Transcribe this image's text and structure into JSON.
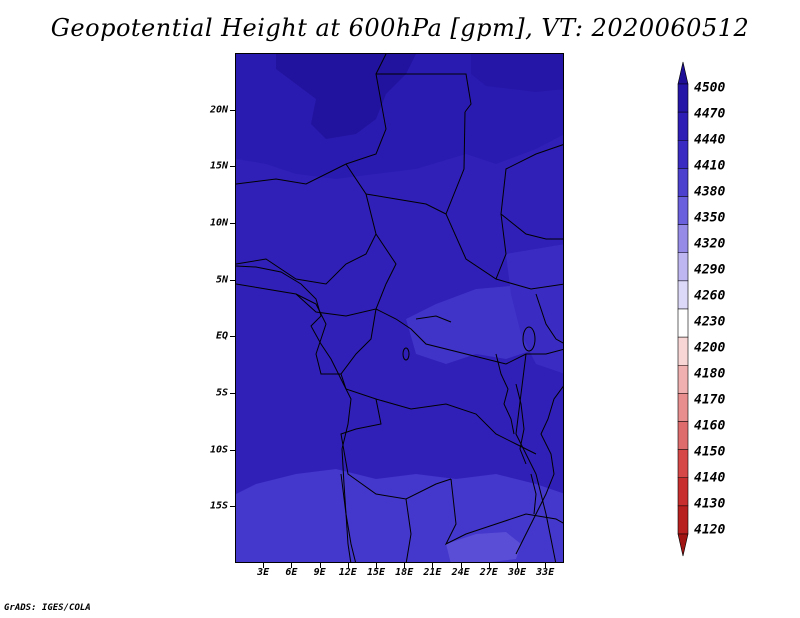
{
  "title": "Geopotential Height at 600hPa [gpm], VT: 2020060512",
  "credit": "GrADS: IGES/COLA",
  "map": {
    "lon_range": [
      0,
      35
    ],
    "lat_range": [
      -20,
      25
    ],
    "lat_ticks": [
      {
        "value": 20,
        "label": "20N"
      },
      {
        "value": 15,
        "label": "15N"
      },
      {
        "value": 10,
        "label": "10N"
      },
      {
        "value": 5,
        "label": "5N"
      },
      {
        "value": 0,
        "label": "EQ"
      },
      {
        "value": -5,
        "label": "5S"
      },
      {
        "value": -10,
        "label": "10S"
      },
      {
        "value": -15,
        "label": "15S"
      }
    ],
    "lon_ticks": [
      {
        "value": 3,
        "label": "3E"
      },
      {
        "value": 6,
        "label": "6E"
      },
      {
        "value": 9,
        "label": "9E"
      },
      {
        "value": 12,
        "label": "12E"
      },
      {
        "value": 15,
        "label": "15E"
      },
      {
        "value": 18,
        "label": "18E"
      },
      {
        "value": 21,
        "label": "21E"
      },
      {
        "value": 24,
        "label": "24E"
      },
      {
        "value": 27,
        "label": "27E"
      },
      {
        "value": 30,
        "label": "30E"
      },
      {
        "value": 33,
        "label": "33E"
      }
    ],
    "field_colors": {
      "level_4470": "#2a1bb0",
      "level_4440": "#3020b8",
      "level_4410": "#3b2ec4",
      "level_4380": "#4a3fcf",
      "level_4350": "#6150d8",
      "level_4500": "#22139e"
    }
  },
  "colorbar": {
    "labels": [
      "4500",
      "4470",
      "4440",
      "4410",
      "4380",
      "4350",
      "4320",
      "4290",
      "4260",
      "4230",
      "4200",
      "4180",
      "4170",
      "4160",
      "4150",
      "4140",
      "4130",
      "4120"
    ],
    "colors": [
      "#1f0f96",
      "#2616a8",
      "#2e1eb6",
      "#3a2cc2",
      "#4c40cf",
      "#6a5fdc",
      "#968ce8",
      "#bdb6f0",
      "#dcd8f8",
      "#ffffff",
      "#f8d6d6",
      "#f1b0b0",
      "#e88e8e",
      "#df6c6c",
      "#d64848",
      "#c92e2e",
      "#b81f1f",
      "#a01414"
    ]
  }
}
